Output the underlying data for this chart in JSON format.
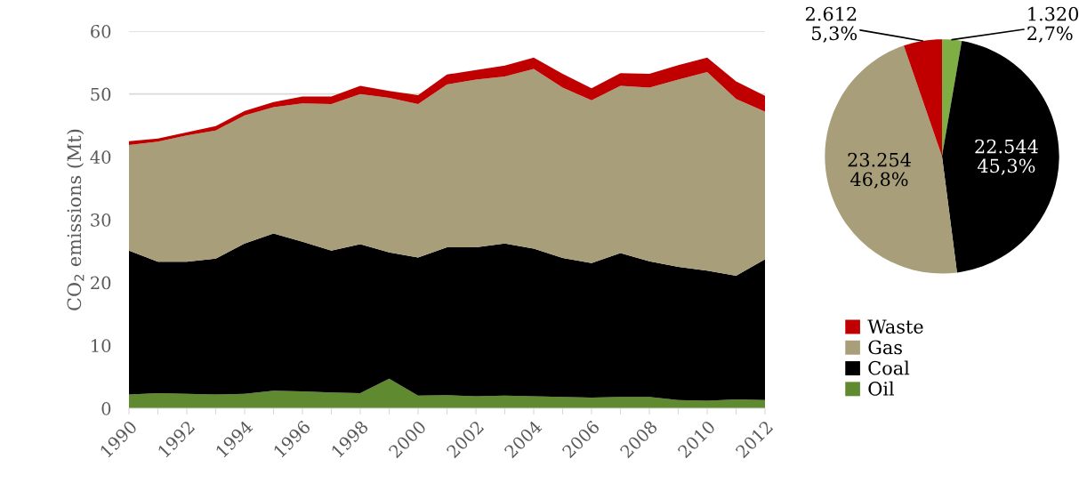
{
  "chart_data": [
    {
      "type": "area",
      "stacked": true,
      "ylabel": "CO$_{2}$ emissions (Mt)",
      "x": [
        1990,
        1991,
        1992,
        1993,
        1994,
        1995,
        1996,
        1997,
        1998,
        1999,
        2000,
        2001,
        2002,
        2003,
        2004,
        2005,
        2006,
        2007,
        2008,
        2009,
        2010,
        2011,
        2012
      ],
      "series": [
        {
          "name": "Oil",
          "color": "#5f8a30",
          "values": [
            2.2,
            2.4,
            2.3,
            2.2,
            2.3,
            2.8,
            2.7,
            2.5,
            2.4,
            4.7,
            2.0,
            2.1,
            1.9,
            2.0,
            1.9,
            1.8,
            1.7,
            1.8,
            1.8,
            1.3,
            1.2,
            1.4,
            1.3
          ]
        },
        {
          "name": "Coal",
          "color": "#000000",
          "values": [
            22.9,
            20.9,
            21.0,
            21.6,
            23.9,
            25.0,
            23.8,
            22.6,
            23.7,
            20.1,
            22.0,
            23.5,
            23.7,
            24.2,
            23.5,
            22.1,
            21.4,
            22.9,
            21.6,
            21.2,
            20.7,
            19.7,
            22.4
          ]
        },
        {
          "name": "Gas",
          "color": "#a89f7a",
          "values": [
            16.8,
            19.1,
            20.1,
            20.4,
            20.4,
            20.1,
            22.0,
            23.3,
            23.9,
            24.6,
            24.4,
            25.9,
            26.7,
            26.6,
            28.6,
            27.1,
            25.9,
            26.6,
            27.6,
            29.8,
            31.6,
            28.1,
            23.5
          ]
        },
        {
          "name": "Waste",
          "color": "#c00000",
          "values": [
            0.6,
            0.5,
            0.5,
            0.7,
            0.7,
            0.8,
            1.1,
            1.2,
            1.3,
            1.1,
            1.4,
            1.6,
            1.5,
            1.7,
            1.8,
            2.2,
            1.9,
            2.0,
            2.2,
            2.3,
            2.3,
            2.8,
            2.5
          ]
        }
      ],
      "xlim": [
        1990,
        2012
      ],
      "xticks": [
        1990,
        {
          "value": 1991,
          "label": null
        },
        1992,
        {
          "value": 1993,
          "label": null
        },
        1994,
        {
          "value": 1995,
          "label": null
        },
        1996,
        {
          "value": 1997,
          "label": null
        },
        1998,
        {
          "value": 1999,
          "label": null
        },
        2000,
        {
          "value": 2001,
          "label": null
        },
        2002,
        {
          "value": 2003,
          "label": null
        },
        2004,
        {
          "value": 2005,
          "label": null
        },
        2006,
        {
          "value": 2007,
          "label": null
        },
        2008,
        {
          "value": 2009,
          "label": null
        },
        2010,
        {
          "value": 2011,
          "label": null
        },
        2012
      ],
      "ylim": [
        0,
        60
      ],
      "yticks": [
        0,
        10,
        20,
        30,
        40,
        50,
        60
      ],
      "grid": "y",
      "legend": "right"
    },
    {
      "type": "pie",
      "categories": [
        null,
        null,
        null,
        null
      ],
      "values": [
        2.7,
        45.3,
        46.8,
        5.3
      ],
      "colors": [
        "#7fae45",
        "#000000",
        "#a89f7a",
        "#c00000"
      ],
      "value_labels": [
        "1.320\n2,7%",
        "22.544\n45,3%",
        "23.254\n46,8%",
        "2.612\n5,3%"
      ]
    }
  ]
}
